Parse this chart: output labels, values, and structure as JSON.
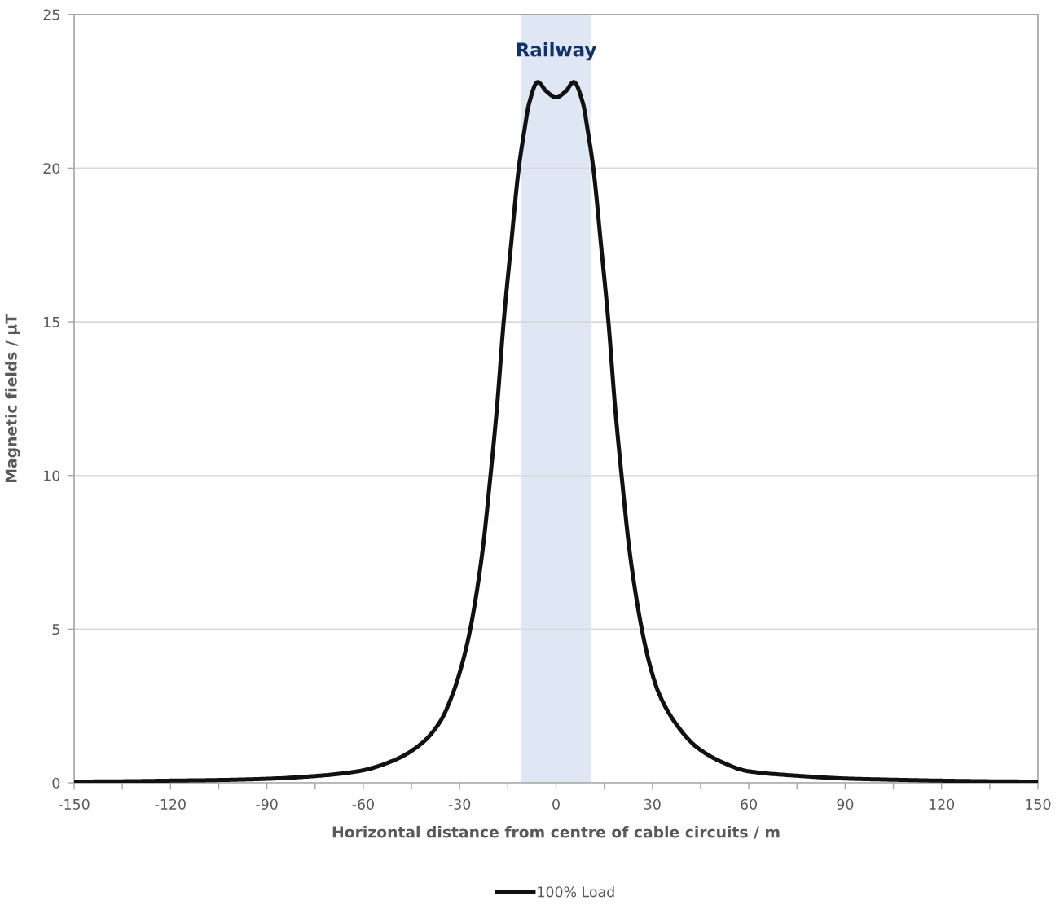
{
  "chart_data": {
    "type": "line",
    "xlabel": "Horizontal distance from centre of cable circuits / m",
    "ylabel": "Magnetic fields / µT",
    "x": [
      -150,
      -135,
      -120,
      -105,
      -90,
      -75,
      -61.4,
      -50.5,
      -42.1,
      -36.2,
      -32,
      -29.1,
      -26.7,
      -23,
      -20.4,
      -18.4,
      -16.3,
      -14,
      -11.6,
      -9.9,
      -8.4,
      -5.7,
      -3,
      0,
      3,
      5.5,
      8.4,
      9.9,
      11.6,
      14,
      16.3,
      18.4,
      20.4,
      23,
      26.7,
      29.2,
      31.9,
      37,
      43.7,
      51.3,
      59.7,
      75,
      90,
      105,
      120,
      135,
      150
    ],
    "series": [
      {
        "name": "100% Load",
        "color": "#111111",
        "values": [
          0.04,
          0.05,
          0.07,
          0.09,
          0.13,
          0.22,
          0.38,
          0.73,
          1.26,
          1.97,
          2.94,
          3.92,
          5,
          7.45,
          10,
          12.2,
          15,
          17.5,
          20,
          21.2,
          22.1,
          22.8,
          22.5,
          22.3,
          22.5,
          22.8,
          22.1,
          21.2,
          20,
          17.5,
          15,
          12.2,
          10,
          7.45,
          5,
          3.83,
          2.94,
          1.97,
          1.17,
          0.69,
          0.38,
          0.23,
          0.14,
          0.1,
          0.07,
          0.05,
          0.04
        ]
      }
    ],
    "xlim": [
      -150,
      150
    ],
    "xticks": [
      -150,
      {
        "value": -135,
        "label": null
      },
      -120,
      {
        "value": -105,
        "label": null
      },
      -90,
      {
        "value": -75,
        "label": null
      },
      -60,
      {
        "value": -45,
        "label": null
      },
      -30,
      {
        "value": -15,
        "label": null
      },
      0,
      {
        "value": 15,
        "label": null
      },
      30,
      {
        "value": 45,
        "label": null
      },
      60,
      {
        "value": 75,
        "label": null
      },
      90,
      {
        "value": 105,
        "label": null
      },
      120,
      {
        "value": 135,
        "label": null
      },
      150
    ],
    "ylim": [
      0,
      25
    ],
    "yticks": [
      0,
      5,
      10,
      15,
      20,
      25
    ],
    "grid": "y",
    "legend": "bottom",
    "line_style": "solid",
    "bands": [
      {
        "axis": "x",
        "from": -11,
        "to": 11,
        "label": "Railway",
        "color": "#dfe6f4"
      }
    ]
  }
}
